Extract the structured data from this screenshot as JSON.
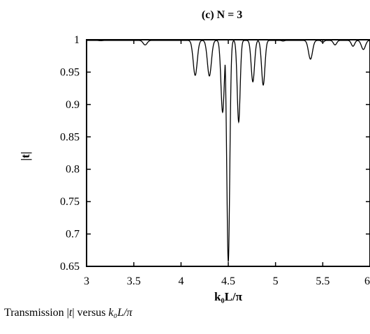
{
  "chart_data": {
    "type": "line",
    "title": "(c) N = 3",
    "xlabel": "k₀L/π",
    "ylabel": "|t|",
    "xlim": [
      3,
      6
    ],
    "ylim": [
      0.65,
      1.0
    ],
    "xticks": [
      3,
      3.5,
      4,
      4.5,
      5,
      5.5,
      6
    ],
    "xtick_labels": [
      "3",
      "3.5",
      "4",
      "4.5",
      "5",
      "5.5",
      "6"
    ],
    "yticks": [
      0.65,
      0.7,
      0.75,
      0.8,
      0.85,
      0.9,
      0.95,
      1.0
    ],
    "ytick_labels": [
      "0.65",
      "0.7",
      "0.75",
      "0.8",
      "0.85",
      "0.9",
      "0.95",
      "1"
    ],
    "grid": false,
    "baseline": 0.999,
    "dips": [
      {
        "x": 3.15,
        "y": 0.9985,
        "w": 0.025
      },
      {
        "x": 3.62,
        "y": 0.992,
        "w": 0.03
      },
      {
        "x": 3.83,
        "y": 0.999,
        "w": 0.02
      },
      {
        "x": 4.15,
        "y": 0.945,
        "w": 0.03
      },
      {
        "x": 4.3,
        "y": 0.944,
        "w": 0.03
      },
      {
        "x": 4.44,
        "y": 0.888,
        "w": 0.025
      },
      {
        "x": 4.5,
        "y": 0.657,
        "w": 0.022
      },
      {
        "x": 4.61,
        "y": 0.873,
        "w": 0.022
      },
      {
        "x": 4.76,
        "y": 0.935,
        "w": 0.025
      },
      {
        "x": 4.87,
        "y": 0.93,
        "w": 0.025
      },
      {
        "x": 5.08,
        "y": 0.998,
        "w": 0.02
      },
      {
        "x": 5.37,
        "y": 0.97,
        "w": 0.03
      },
      {
        "x": 5.5,
        "y": 0.996,
        "w": 0.02
      },
      {
        "x": 5.63,
        "y": 0.992,
        "w": 0.025
      },
      {
        "x": 5.82,
        "y": 0.99,
        "w": 0.025
      },
      {
        "x": 5.93,
        "y": 0.985,
        "w": 0.03
      }
    ]
  },
  "caption": {
    "prefix": "Transmission |",
    "t": "t",
    "middle": "| versus ",
    "expr": "k₀L/π"
  }
}
